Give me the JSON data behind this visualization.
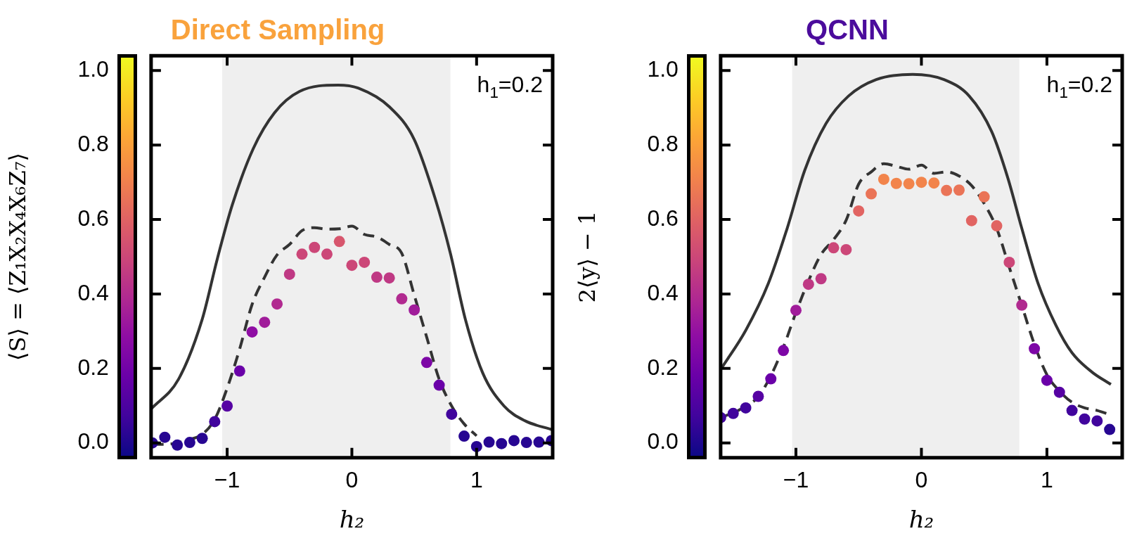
{
  "chart_data": [
    {
      "type": "scatter",
      "title": "Direct Sampling",
      "xlabel": "h₂",
      "ylabel": "⟨S⟩ = ⟨Z₁X₂X₄X₆Z₇⟩",
      "annotations": [
        "h$_{1}$=0.2"
      ],
      "xlim": [
        -1.61,
        1.61
      ],
      "ylim": [
        -0.04,
        1.04
      ],
      "xticks": [
        {
          "value": -1,
          "label": "−1"
        },
        {
          "value": 0,
          "label": "0"
        },
        {
          "value": 1,
          "label": "1"
        }
      ],
      "yticks": [
        {
          "value": 0,
          "label": "0.0"
        },
        {
          "value": 0.2,
          "label": "0.2"
        },
        {
          "value": 0.4,
          "label": "0.4"
        },
        {
          "value": 0.6,
          "label": "0.6"
        },
        {
          "value": 0.8,
          "label": "0.8"
        },
        {
          "value": 1,
          "label": "1.0"
        }
      ],
      "bands": [
        {
          "axis": "x",
          "from": -1.04,
          "to": 0.79,
          "color": "#efefef"
        }
      ],
      "series": [
        {
          "type": "line",
          "color": "#333333",
          "line_style": "solid",
          "marker": "none",
          "x": [
            -1.61,
            -1.39,
            -1.2,
            -1.08,
            -0.96,
            -0.79,
            -0.62,
            -0.42,
            -0.11,
            0.06,
            0.3,
            0.5,
            0.67,
            0.79,
            0.91,
            1.05,
            1.22,
            1.39,
            1.61
          ],
          "values": [
            0.091,
            0.171,
            0.332,
            0.493,
            0.638,
            0.791,
            0.887,
            0.944,
            0.961,
            0.952,
            0.903,
            0.815,
            0.654,
            0.509,
            0.332,
            0.187,
            0.099,
            0.059,
            0.035
          ]
        },
        {
          "type": "line",
          "color": "#333333",
          "line_style": "dashed",
          "marker": "none",
          "x": [
            -1.6,
            -1.5,
            -1.4,
            -1.3,
            -1.2,
            -1.1,
            -1.0,
            -0.9,
            -0.8,
            -0.7,
            -0.6,
            -0.5,
            -0.4,
            -0.3,
            -0.2,
            -0.1,
            0,
            0.1,
            0.2,
            0.3,
            0.4,
            0.5,
            0.6,
            0.7,
            0.8,
            0.9,
            1.0
          ],
          "values": [
            -0.004,
            -0.004,
            0.0,
            0.009,
            0.023,
            0.063,
            0.147,
            0.252,
            0.372,
            0.445,
            0.505,
            0.533,
            0.57,
            0.578,
            0.574,
            0.575,
            0.582,
            0.56,
            0.553,
            0.533,
            0.509,
            0.397,
            0.284,
            0.171,
            0.099,
            0.051,
            0.019
          ]
        },
        {
          "type": "scatter",
          "marker": "circle",
          "x": [
            -1.6,
            -1.5,
            -1.4,
            -1.3,
            -1.2,
            -1.1,
            -1.0,
            -0.9,
            -0.8,
            -0.7,
            -0.6,
            -0.5,
            -0.4,
            -0.3,
            -0.2,
            -0.1,
            0,
            0.1,
            0.2,
            0.3,
            0.4,
            0.5,
            0.6,
            0.7,
            0.8,
            0.9,
            1.0,
            1.1,
            1.2,
            1.3,
            1.4,
            1.5,
            1.6
          ],
          "values": [
            0.0,
            0.015,
            -0.006,
            0.001,
            0.012,
            0.057,
            0.099,
            0.193,
            0.298,
            0.324,
            0.373,
            0.453,
            0.507,
            0.525,
            0.507,
            0.541,
            0.477,
            0.485,
            0.445,
            0.443,
            0.387,
            0.357,
            0.216,
            0.155,
            0.077,
            0.018,
            -0.01,
            0.002,
            -0.002,
            0.006,
            0.001,
            0.002,
            0.006
          ],
          "colors": [
            "#270692",
            "#270692",
            "#270692",
            "#270692",
            "#270692",
            "#41049d",
            "#5602a3",
            "#6a00a8",
            "#8f0da4",
            "#a01c9a",
            "#b12a90",
            "#bf3984",
            "#cc4778",
            "#cc4778",
            "#cc4778",
            "#d7566d",
            "#cc4778",
            "#cc4778",
            "#bf3984",
            "#bf3984",
            "#b12a90",
            "#a01c9a",
            "#7d07a6",
            "#6a00a8",
            "#41049d",
            "#270692",
            "#270692",
            "#270692",
            "#270692",
            "#270692",
            "#270692",
            "#270692",
            "#270692"
          ]
        }
      ]
    },
    {
      "type": "scatter",
      "title": "QCNN",
      "xlabel": "h₂",
      "ylabel": "2⟨y⟩ − 1",
      "annotations": [
        "h$_{1}$=0.2"
      ],
      "xlim": [
        -1.6,
        1.6
      ],
      "ylim": [
        -0.04,
        1.04
      ],
      "xticks": [
        {
          "value": -1,
          "label": "−1"
        },
        {
          "value": 0,
          "label": "0"
        },
        {
          "value": 1,
          "label": "1"
        }
      ],
      "yticks": [
        {
          "value": 0,
          "label": "0.0"
        },
        {
          "value": 0.2,
          "label": "0.2"
        },
        {
          "value": 0.4,
          "label": "0.4"
        },
        {
          "value": 0.6,
          "label": "0.6"
        },
        {
          "value": 0.8,
          "label": "0.8"
        },
        {
          "value": 1,
          "label": "1.0"
        }
      ],
      "bands": [
        {
          "axis": "x",
          "from": -1.03,
          "to": 0.78,
          "color": "#efefef"
        }
      ],
      "series": [
        {
          "type": "line",
          "color": "#333333",
          "line_style": "solid",
          "marker": "none",
          "x": [
            -1.59,
            -1.4,
            -1.22,
            -1.07,
            -0.93,
            -0.76,
            -0.58,
            -0.36,
            -0.07,
            0.18,
            0.38,
            0.56,
            0.69,
            0.8,
            0.93,
            1.07,
            1.2,
            1.36,
            1.51
          ],
          "values": [
            0.202,
            0.302,
            0.428,
            0.576,
            0.732,
            0.858,
            0.932,
            0.976,
            0.99,
            0.976,
            0.932,
            0.836,
            0.71,
            0.576,
            0.428,
            0.317,
            0.242,
            0.19,
            0.157
          ]
        },
        {
          "type": "line",
          "color": "#333333",
          "line_style": "dashed",
          "marker": "none",
          "x": [
            -1.6,
            -1.5,
            -1.4,
            -1.3,
            -1.2,
            -1.1,
            -1.0,
            -0.9,
            -0.8,
            -0.7,
            -0.6,
            -0.5,
            -0.4,
            -0.3,
            -0.2,
            -0.1,
            0,
            0.1,
            0.2,
            0.3,
            0.4,
            0.5,
            0.6,
            0.7,
            0.8,
            0.9,
            1.0,
            1.1,
            1.2,
            1.3,
            1.4,
            1.5
          ],
          "values": [
            0.068,
            0.081,
            0.098,
            0.124,
            0.18,
            0.257,
            0.35,
            0.435,
            0.506,
            0.546,
            0.598,
            0.695,
            0.728,
            0.75,
            0.743,
            0.735,
            0.746,
            0.724,
            0.728,
            0.717,
            0.691,
            0.643,
            0.576,
            0.472,
            0.369,
            0.265,
            0.183,
            0.139,
            0.109,
            0.094,
            0.087,
            0.076
          ]
        },
        {
          "type": "scatter",
          "marker": "circle",
          "x": [
            -1.6,
            -1.5,
            -1.4,
            -1.3,
            -1.2,
            -1.1,
            -1.0,
            -0.9,
            -0.8,
            -0.7,
            -0.6,
            -0.5,
            -0.4,
            -0.3,
            -0.2,
            -0.1,
            0,
            0.1,
            0.2,
            0.3,
            0.4,
            0.5,
            0.6,
            0.7,
            0.8,
            0.9,
            1.0,
            1.1,
            1.2,
            1.3,
            1.4,
            1.5
          ],
          "values": [
            0.068,
            0.079,
            0.094,
            0.125,
            0.172,
            0.248,
            0.356,
            0.426,
            0.441,
            0.524,
            0.519,
            0.623,
            0.669,
            0.708,
            0.697,
            0.696,
            0.7,
            0.698,
            0.678,
            0.679,
            0.597,
            0.661,
            0.583,
            0.485,
            0.37,
            0.253,
            0.168,
            0.136,
            0.087,
            0.064,
            0.059,
            0.036
          ],
          "colors": [
            "#41049d",
            "#41049d",
            "#41049d",
            "#5602a3",
            "#6a00a8",
            "#7d07a6",
            "#a01c9a",
            "#bf3984",
            "#bf3984",
            "#cc4778",
            "#cc4778",
            "#e16462",
            "#ea7457",
            "#f2844b",
            "#f2844b",
            "#f2844b",
            "#f2844b",
            "#f2844b",
            "#ea7457",
            "#ea7457",
            "#e16462",
            "#ea7457",
            "#e16462",
            "#cc4778",
            "#b12a90",
            "#7d07a6",
            "#6a00a8",
            "#5602a3",
            "#41049d",
            "#41049d",
            "#41049d",
            "#270692"
          ]
        }
      ]
    }
  ]
}
